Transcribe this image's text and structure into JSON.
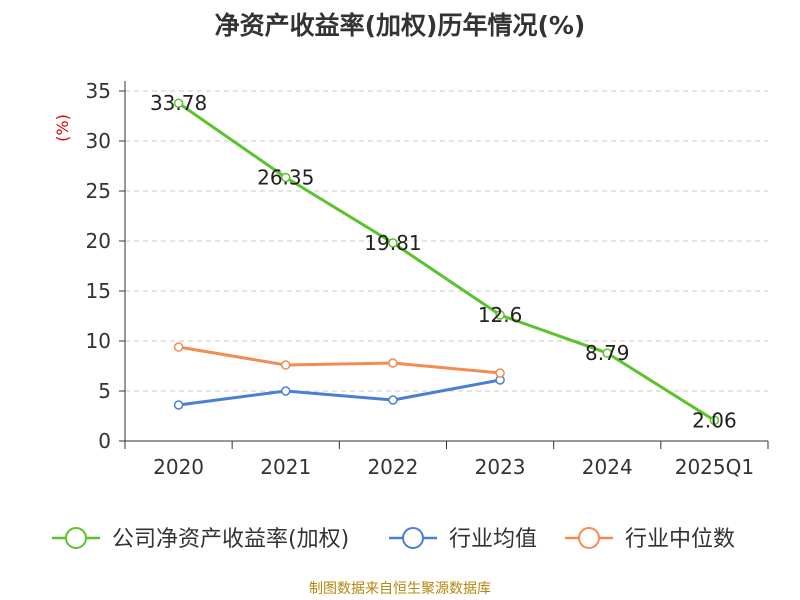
{
  "chart_data": {
    "type": "line",
    "title": "净资产收益率(加权)历年情况(%)",
    "ylabel": "(%)",
    "ylim": [
      0,
      35
    ],
    "yticks": [
      0,
      5,
      10,
      15,
      20,
      25,
      30,
      35
    ],
    "categories": [
      "2020",
      "2021",
      "2022",
      "2023",
      "2024",
      "2025Q1"
    ],
    "grid": "dashed-horizontal",
    "legend_position": "bottom",
    "series": [
      {
        "name": "公司净资产收益率(加权)",
        "color": "#5bc22a",
        "values": [
          33.78,
          26.35,
          19.81,
          12.6,
          8.79,
          2.06
        ],
        "labels": [
          "33.78",
          "26.35",
          "19.81",
          "12.6",
          "8.79",
          "2.06"
        ]
      },
      {
        "name": "行业均值",
        "color": "#4a7fd4",
        "values": [
          3.6,
          5.0,
          4.1,
          6.1,
          null,
          null
        ]
      },
      {
        "name": "行业中位数",
        "color": "#f28b54",
        "values": [
          9.4,
          7.6,
          7.8,
          6.8,
          null,
          null
        ]
      }
    ]
  },
  "source": "制图数据来自恒生聚源数据库"
}
